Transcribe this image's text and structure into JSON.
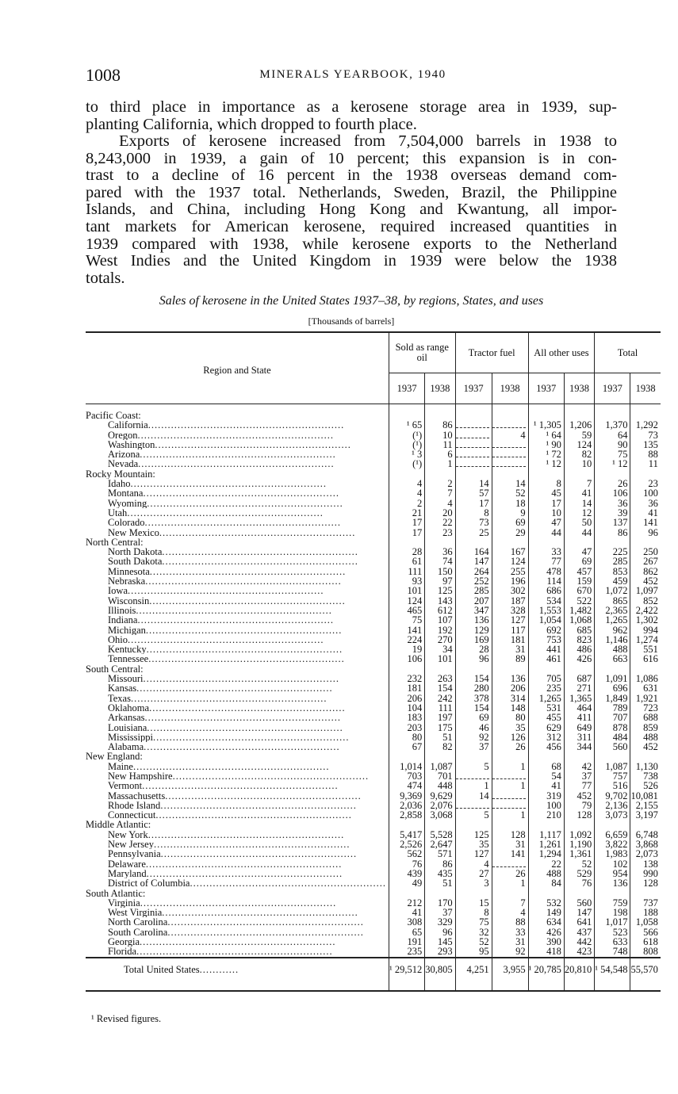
{
  "header": {
    "page_number": "1008",
    "running_title": "MINERALS YEARBOOK, 1940"
  },
  "paragraphs": [
    {
      "lines": [
        "to third place in importance as a kerosene storage area in 1939, sup-",
        "planting California, which dropped to fourth place."
      ]
    },
    {
      "lines": [
        "Exports of kerosene increased from 7,504,000 barrels in 1938 to",
        "8,243,000 in 1939, a gain of 10 percent; this expansion is in con-",
        "trast to a decline of 16 percent in the 1938 overseas demand com-",
        "pared with the 1937 total. Netherlands, Sweden, Brazil, the Philippine",
        "Islands, and China, including Hong Kong and Kwantung, all impor-",
        "tant markets for American kerosene, required increased quantities in",
        "1939 compared with 1938, while kerosene exports to the Netherland",
        "West Indies and the United Kingdom in 1939 were below the 1938",
        "totals."
      ]
    }
  ],
  "table": {
    "caption": "Sales of kerosene in the United States 1937–38, by regions, States, and uses",
    "unit": "[Thousands of barrels]",
    "row_header": "Region and State",
    "column_groups": [
      "Sold as range oil",
      "Tractor fuel",
      "All other uses",
      "Total"
    ],
    "years": [
      "1937",
      "1938"
    ],
    "groups": [
      {
        "region": "Pacific Coast:",
        "rows": [
          [
            "California",
            "¹ 65",
            "86",
            "",
            "",
            "¹ 1,305",
            "1,206",
            "1,370",
            "1,292"
          ],
          [
            "Oregon",
            "(¹)",
            "10",
            "",
            "4",
            "¹ 64",
            "59",
            "64",
            "73"
          ],
          [
            "Washington",
            "(¹)",
            "11",
            "",
            "",
            "¹ 90",
            "124",
            "90",
            "135"
          ],
          [
            "Arizona",
            "¹ 3",
            "6",
            "",
            "",
            "¹ 72",
            "82",
            "75",
            "88"
          ],
          [
            "Nevada",
            "(¹)",
            "1",
            "",
            "",
            "¹ 12",
            "10",
            "¹ 12",
            "11"
          ]
        ]
      },
      {
        "region": "Rocky Mountain:",
        "rows": [
          [
            "Idaho",
            "4",
            "2",
            "14",
            "14",
            "8",
            "7",
            "26",
            "23"
          ],
          [
            "Montana",
            "4",
            "7",
            "57",
            "52",
            "45",
            "41",
            "106",
            "100"
          ],
          [
            "Wyoming",
            "2",
            "4",
            "17",
            "18",
            "17",
            "14",
            "36",
            "36"
          ],
          [
            "Utah",
            "21",
            "20",
            "8",
            "9",
            "10",
            "12",
            "39",
            "41"
          ],
          [
            "Colorado",
            "17",
            "22",
            "73",
            "69",
            "47",
            "50",
            "137",
            "141"
          ],
          [
            "New Mexico",
            "17",
            "23",
            "25",
            "29",
            "44",
            "44",
            "86",
            "96"
          ]
        ]
      },
      {
        "region": "North Central:",
        "rows": [
          [
            "North Dakota",
            "28",
            "36",
            "164",
            "167",
            "33",
            "47",
            "225",
            "250"
          ],
          [
            "South Dakota",
            "61",
            "74",
            "147",
            "124",
            "77",
            "69",
            "285",
            "267"
          ],
          [
            "Minnesota",
            "111",
            "150",
            "264",
            "255",
            "478",
            "457",
            "853",
            "862"
          ],
          [
            "Nebraska",
            "93",
            "97",
            "252",
            "196",
            "114",
            "159",
            "459",
            "452"
          ],
          [
            "Iowa",
            "101",
            "125",
            "285",
            "302",
            "686",
            "670",
            "1,072",
            "1,097"
          ],
          [
            "Wisconsin",
            "124",
            "143",
            "207",
            "187",
            "534",
            "522",
            "865",
            "852"
          ],
          [
            "Illinois",
            "465",
            "612",
            "347",
            "328",
            "1,553",
            "1,482",
            "2,365",
            "2,422"
          ],
          [
            "Indiana",
            "75",
            "107",
            "136",
            "127",
            "1,054",
            "1,068",
            "1,265",
            "1,302"
          ],
          [
            "Michigan",
            "141",
            "192",
            "129",
            "117",
            "692",
            "685",
            "962",
            "994"
          ],
          [
            "Ohio",
            "224",
            "270",
            "169",
            "181",
            "753",
            "823",
            "1,146",
            "1,274"
          ],
          [
            "Kentucky",
            "19",
            "34",
            "28",
            "31",
            "441",
            "486",
            "488",
            "551"
          ],
          [
            "Tennessee",
            "106",
            "101",
            "96",
            "89",
            "461",
            "426",
            "663",
            "616"
          ]
        ]
      },
      {
        "region": "South Central:",
        "rows": [
          [
            "Missouri",
            "232",
            "263",
            "154",
            "136",
            "705",
            "687",
            "1,091",
            "1,086"
          ],
          [
            "Kansas",
            "181",
            "154",
            "280",
            "206",
            "235",
            "271",
            "696",
            "631"
          ],
          [
            "Texas",
            "206",
            "242",
            "378",
            "314",
            "1,265",
            "1,365",
            "1,849",
            "1,921"
          ],
          [
            "Oklahoma",
            "104",
            "111",
            "154",
            "148",
            "531",
            "464",
            "789",
            "723"
          ],
          [
            "Arkansas",
            "183",
            "197",
            "69",
            "80",
            "455",
            "411",
            "707",
            "688"
          ],
          [
            "Louisiana",
            "203",
            "175",
            "46",
            "35",
            "629",
            "649",
            "878",
            "859"
          ],
          [
            "Mississippi",
            "80",
            "51",
            "92",
            "126",
            "312",
            "311",
            "484",
            "488"
          ],
          [
            "Alabama",
            "67",
            "82",
            "37",
            "26",
            "456",
            "344",
            "560",
            "452"
          ]
        ]
      },
      {
        "region": "New England:",
        "rows": [
          [
            "Maine",
            "1,014",
            "1,087",
            "5",
            "1",
            "68",
            "42",
            "1,087",
            "1,130"
          ],
          [
            "New Hampshire",
            "703",
            "701",
            "",
            "",
            "54",
            "37",
            "757",
            "738"
          ],
          [
            "Vermont",
            "474",
            "448",
            "1",
            "1",
            "41",
            "77",
            "516",
            "526"
          ],
          [
            "Massachusetts",
            "9,369",
            "9,629",
            "14",
            "",
            "319",
            "452",
            "9,702",
            "10,081"
          ],
          [
            "Rhode Island",
            "2,036",
            "2,076",
            "",
            "",
            "100",
            "79",
            "2,136",
            "2,155"
          ],
          [
            "Connecticut",
            "2,858",
            "3,068",
            "5",
            "1",
            "210",
            "128",
            "3,073",
            "3,197"
          ]
        ]
      },
      {
        "region": "Middle Atlantic:",
        "rows": [
          [
            "New York",
            "5,417",
            "5,528",
            "125",
            "128",
            "1,117",
            "1,092",
            "6,659",
            "6,748"
          ],
          [
            "New Jersey",
            "2,526",
            "2,647",
            "35",
            "31",
            "1,261",
            "1,190",
            "3,822",
            "3,868"
          ],
          [
            "Pennsylvania",
            "562",
            "571",
            "127",
            "141",
            "1,294",
            "1,361",
            "1,983",
            "2,073"
          ],
          [
            "Delaware",
            "76",
            "86",
            "4",
            "",
            "22",
            "52",
            "102",
            "138"
          ],
          [
            "Maryland",
            "439",
            "435",
            "27",
            "26",
            "488",
            "529",
            "954",
            "990"
          ],
          [
            "District of Columbia",
            "49",
            "51",
            "3",
            "1",
            "84",
            "76",
            "136",
            "128"
          ]
        ]
      },
      {
        "region": "South Atlantic:",
        "rows": [
          [
            "Virginia",
            "212",
            "170",
            "15",
            "7",
            "532",
            "560",
            "759",
            "737"
          ],
          [
            "West Virginia",
            "41",
            "37",
            "8",
            "4",
            "149",
            "147",
            "198",
            "188"
          ],
          [
            "North Carolina",
            "308",
            "329",
            "75",
            "88",
            "634",
            "641",
            "1,017",
            "1,058"
          ],
          [
            "South Carolina",
            "65",
            "96",
            "32",
            "33",
            "426",
            "437",
            "523",
            "566"
          ],
          [
            "Georgia",
            "191",
            "145",
            "52",
            "31",
            "390",
            "442",
            "633",
            "618"
          ],
          [
            "Florida",
            "235",
            "293",
            "95",
            "92",
            "418",
            "423",
            "748",
            "808"
          ]
        ]
      }
    ],
    "total": [
      "Total United States",
      "¹ 29,512",
      "30,805",
      "4,251",
      "3,955",
      "¹ 20,785",
      "20,810",
      "¹ 54,548",
      "55,570"
    ]
  },
  "footnote": "¹ Revised figures."
}
